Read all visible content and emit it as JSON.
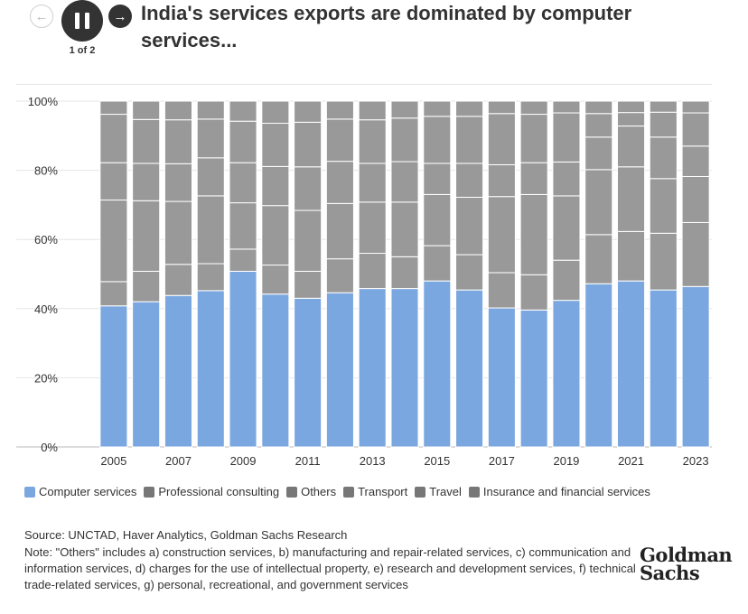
{
  "header": {
    "title": "India's services exports are dominated by computer services...",
    "slide_counter": "1 of 2",
    "prev_icon": "arrow-left-icon",
    "pause_icon": "pause-icon",
    "next_icon": "arrow-right-icon"
  },
  "chart_data": {
    "type": "bar",
    "stacked": true,
    "categories": [
      "2005",
      "2006",
      "2007",
      "2008",
      "2009",
      "2010",
      "2011",
      "2012",
      "2013",
      "2014",
      "2015",
      "2016",
      "2017",
      "2018",
      "2019",
      "2020",
      "2021",
      "2022",
      "2023"
    ],
    "x_tick_labels": [
      "2005",
      "2007",
      "2009",
      "2011",
      "2013",
      "2015",
      "2017",
      "2019",
      "2021",
      "2023"
    ],
    "y_tick_labels": [
      "0%",
      "20%",
      "40%",
      "60%",
      "80%",
      "100%"
    ],
    "ylim": [
      0,
      100
    ],
    "grid": true,
    "legend_position": "bottom",
    "series": [
      {
        "name": "Computer services",
        "color": "#7ba7e0",
        "values": [
          40.8,
          42.0,
          43.8,
          45.2,
          50.8,
          44.2,
          43.0,
          44.6,
          45.8,
          45.8,
          48.0,
          45.4,
          40.2,
          39.6,
          42.4,
          47.2,
          48.0,
          45.4,
          46.4
        ]
      },
      {
        "name": "Professional consulting",
        "color": "#999999",
        "values": [
          7.0,
          8.8,
          9.0,
          7.8,
          6.4,
          8.4,
          7.8,
          9.8,
          10.2,
          9.2,
          10.2,
          10.2,
          10.2,
          10.2,
          11.6,
          14.2,
          14.3,
          16.4,
          18.5
        ]
      },
      {
        "name": "Others",
        "color": "#999999",
        "values": [
          23.6,
          20.4,
          18.2,
          19.6,
          13.4,
          17.2,
          17.6,
          16.0,
          14.8,
          15.8,
          14.8,
          16.6,
          22.0,
          23.2,
          18.6,
          18.8,
          18.7,
          15.8,
          13.3
        ]
      },
      {
        "name": "Transport",
        "color": "#999999",
        "values": [
          10.8,
          10.8,
          10.9,
          11.0,
          11.6,
          11.3,
          12.6,
          12.2,
          11.2,
          11.7,
          9.0,
          9.8,
          9.2,
          9.2,
          9.8,
          9.4,
          11.8,
          12.0,
          8.8
        ]
      },
      {
        "name": "Travel",
        "color": "#999999",
        "values": [
          14.0,
          12.7,
          12.7,
          11.2,
          12.0,
          12.5,
          12.9,
          12.2,
          12.6,
          12.6,
          13.6,
          13.6,
          14.8,
          14.0,
          14.2,
          6.8,
          3.9,
          7.2,
          9.6
        ]
      },
      {
        "name": "Insurance and financial services",
        "color": "#999999",
        "values": [
          3.8,
          5.3,
          5.4,
          5.2,
          5.8,
          6.4,
          6.1,
          5.2,
          5.4,
          4.9,
          4.4,
          4.4,
          3.6,
          3.8,
          3.4,
          3.6,
          3.3,
          3.2,
          3.4
        ]
      }
    ]
  },
  "footer": {
    "source": "Source: UNCTAD, Haver Analytics, Goldman Sachs Research",
    "note": "Note: \"Others\" includes a) construction services, b) manufacturing and repair-related services, c) communication and information services, d) charges for the use of intellectual property, e) research and development services, f) technical trade-related services, g) personal, recreational, and government services",
    "logo_line1": "Goldman",
    "logo_line2": "Sachs"
  }
}
